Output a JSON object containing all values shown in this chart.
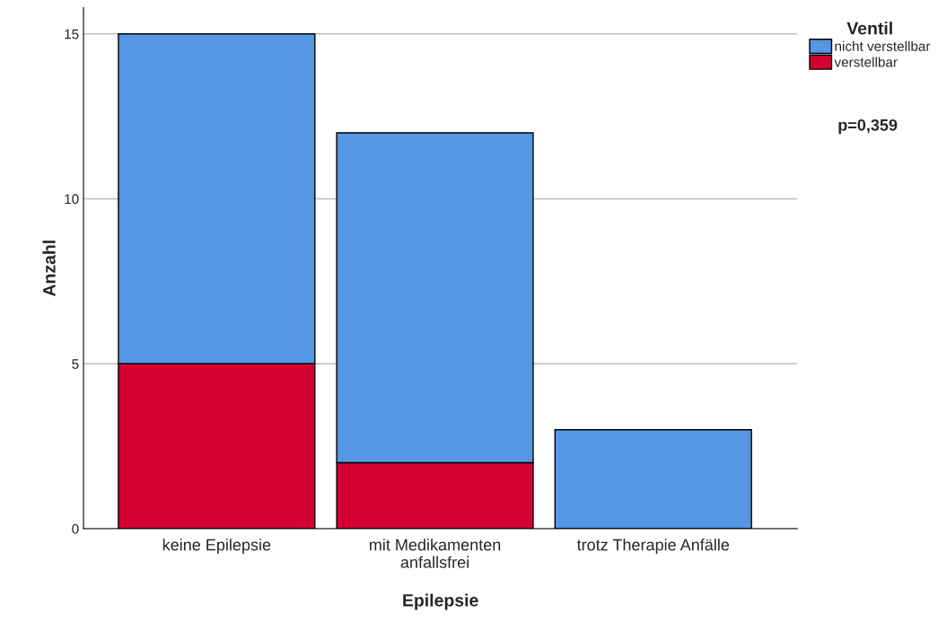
{
  "chart_data": {
    "type": "bar",
    "stacked": true,
    "xlabel": "Epilepsie",
    "ylabel": "Anzahl",
    "legend_title": "Ventil",
    "legend": "top right",
    "categories": [
      "keine Epilepsie",
      "mit Medikamenten\nanfallsfrei",
      "trotz Therapie Anfälle"
    ],
    "series": [
      {
        "name": "verstellbar",
        "color": "#d50032",
        "values": [
          5,
          2,
          0
        ]
      },
      {
        "name": "nicht verstellbar",
        "color": "#5596e5",
        "values": [
          10,
          10,
          3
        ]
      }
    ],
    "ylim": [
      0,
      15.8
    ],
    "yticks": [
      0,
      5,
      10,
      15
    ],
    "grid": "y",
    "annotations": [
      "p=0,359"
    ]
  }
}
